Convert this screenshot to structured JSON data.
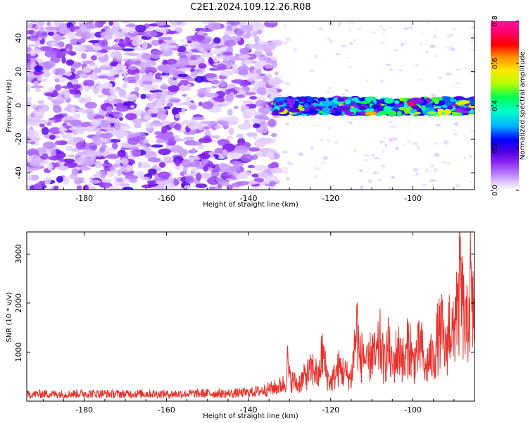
{
  "figure_title": "C2E1.2024.109.12.26.R08",
  "chart_data": [
    {
      "type": "heatmap",
      "xlabel": "Height of straight line (km)",
      "ylabel": "Frequency (Hz)",
      "xlim": [
        -194,
        -85
      ],
      "ylim": [
        -50,
        50
      ],
      "xticks": [
        -180,
        -160,
        -140,
        -120,
        -100
      ],
      "yticks": [
        -40,
        -20,
        0,
        20,
        40
      ],
      "colorbar": {
        "label": "Normalized spectral amplitude",
        "range": [
          0.0,
          0.8
        ],
        "ticks": [
          "0.0",
          "0.2",
          "0.4",
          "0.6",
          "0.8"
        ],
        "colors": [
          "#ffffff",
          "#e6d2ff",
          "#b57cff",
          "#8a20f0",
          "#4b00e0",
          "#0000ff",
          "#00b4ff",
          "#00ffc8",
          "#00ff50",
          "#b4ff00",
          "#ffe600",
          "#ff8c00",
          "#ff0000",
          "#ff0064",
          "#ff14a0"
        ]
      },
      "features": {
        "noise_region_x": [
          -194,
          -135
        ],
        "signal_band_x": [
          -134,
          -85
        ],
        "signal_band_freq_hz": [
          -5,
          4
        ],
        "signal_peak_amplitude": 0.75
      }
    },
    {
      "type": "line",
      "xlabel": "Height of straight line (km)",
      "ylabel": "SNR (10 * v/v)",
      "xlim": [
        -194,
        -85
      ],
      "ylim": [
        0,
        3450
      ],
      "xticks": [
        -180,
        -160,
        -140,
        -120,
        -100
      ],
      "yticks": [
        1000,
        2000,
        3000
      ],
      "series": [
        {
          "color": "#e8302a",
          "x": [
            -194,
            -190,
            -185,
            -180,
            -175,
            -170,
            -165,
            -160,
            -155,
            -150,
            -145,
            -140,
            -136,
            -133,
            -131,
            -130.5,
            -130,
            -128,
            -126,
            -124,
            -123,
            -122,
            -121,
            -120,
            -118,
            -116,
            -115,
            -114,
            -113.5,
            -113,
            -112,
            -111,
            -110,
            -109,
            -108,
            -107,
            -106,
            -105,
            -104,
            -103,
            -102,
            -101,
            -100,
            -99,
            -98,
            -97,
            -96,
            -95,
            -94,
            -93,
            -92,
            -91,
            -90,
            -89.5,
            -89,
            -88.5,
            -88,
            -87,
            -86,
            -85.5,
            -85
          ],
          "y": [
            180,
            200,
            190,
            210,
            200,
            195,
            205,
            190,
            200,
            210,
            205,
            230,
            300,
            380,
            500,
            1050,
            600,
            450,
            700,
            900,
            600,
            1350,
            700,
            500,
            900,
            700,
            600,
            1700,
            2000,
            1100,
            1300,
            900,
            1400,
            1100,
            1600,
            1000,
            1500,
            900,
            1300,
            1400,
            900,
            1700,
            1000,
            1300,
            1500,
            800,
            1200,
            1100,
            1700,
            1900,
            1300,
            2200,
            1600,
            3050,
            2100,
            3420,
            2600,
            1800,
            3100,
            2200,
            2800
          ]
        }
      ]
    }
  ]
}
